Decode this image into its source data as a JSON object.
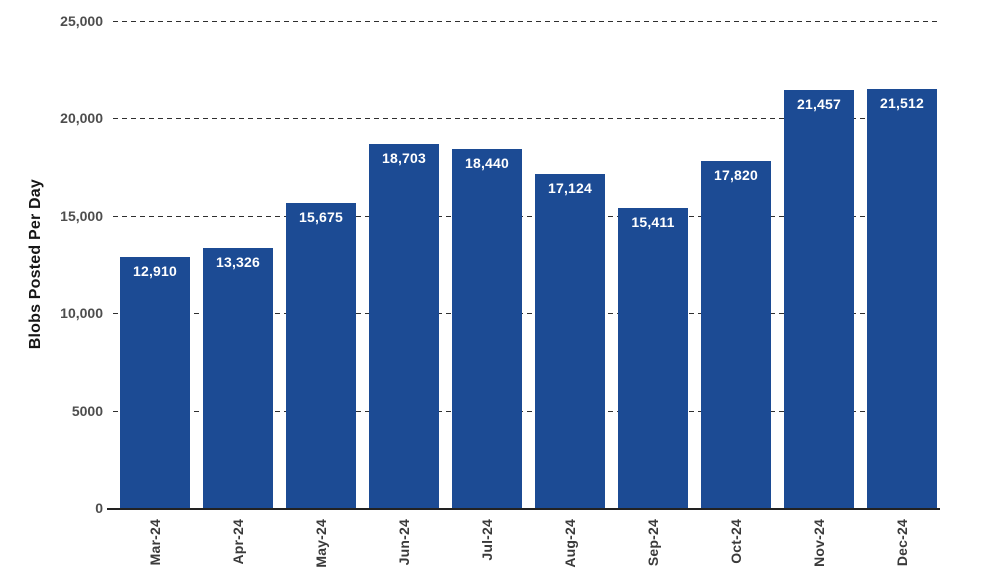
{
  "chart_data": {
    "type": "bar",
    "title": "",
    "ylabel": "Blobs Posted Per Day",
    "xlabel": "",
    "categories": [
      "Mar-24",
      "Apr-24",
      "May-24",
      "Jun-24",
      "Jul-24",
      "Aug-24",
      "Sep-24",
      "Oct-24",
      "Nov-24",
      "Dec-24"
    ],
    "values": [
      12910,
      13326,
      15675,
      18703,
      18440,
      17124,
      15411,
      17820,
      21457,
      21512
    ],
    "value_labels": [
      "12,910",
      "13,326",
      "15,675",
      "18,703",
      "18,440",
      "17,124",
      "15,411",
      "17,820",
      "21,457",
      "21,512"
    ],
    "ylim": [
      0,
      25000
    ],
    "yticks": [
      {
        "value": 25000,
        "label": "25,000"
      },
      {
        "value": 20000,
        "label": "20,000"
      },
      {
        "value": 15000,
        "label": "15,000"
      },
      {
        "value": 10000,
        "label": "10,000"
      },
      {
        "value": 5000,
        "label": "5000"
      },
      {
        "value": 0,
        "label": "0"
      }
    ],
    "grid": "horizontal-dashed",
    "legend": "none",
    "value_label_position": "inside-top",
    "colors": {
      "bar": "#1c4b94",
      "value_text": "#ffffff",
      "grid": "#2f2f2f",
      "axis": "#222222",
      "ytick_text": "#4d4d4d",
      "xtick_text": "#3a3a3a",
      "ylabel_text": "#161616",
      "background": "#ffffff"
    }
  }
}
